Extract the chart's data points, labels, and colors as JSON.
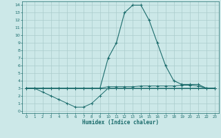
{
  "title": "",
  "xlabel": "Humidex (Indice chaleur)",
  "bg_color": "#cce8e8",
  "grid_color": "#aacccc",
  "line_color": "#1a6b6b",
  "xlim": [
    -0.5,
    23.5
  ],
  "ylim": [
    -0.3,
    14.5
  ],
  "xticks": [
    0,
    1,
    2,
    3,
    4,
    5,
    6,
    7,
    8,
    9,
    10,
    11,
    12,
    13,
    14,
    15,
    16,
    17,
    18,
    19,
    20,
    21,
    22,
    23
  ],
  "yticks": [
    0,
    1,
    2,
    3,
    4,
    5,
    6,
    7,
    8,
    9,
    10,
    11,
    12,
    13,
    14
  ],
  "curve1_x": [
    0,
    1,
    2,
    3,
    4,
    5,
    6,
    7,
    8,
    9,
    10,
    11,
    12,
    13,
    14,
    15,
    16,
    17,
    18,
    19,
    20,
    21,
    22,
    23
  ],
  "curve1_y": [
    3,
    3,
    3,
    3,
    3,
    3,
    3,
    3,
    3,
    3,
    3,
    3,
    3,
    3,
    3,
    3,
    3,
    3,
    3,
    3,
    3,
    3,
    3,
    3
  ],
  "curve2_x": [
    0,
    1,
    2,
    3,
    4,
    5,
    6,
    7,
    8,
    9,
    10,
    11,
    12,
    13,
    14,
    15,
    16,
    17,
    18,
    19,
    20,
    21,
    22,
    23
  ],
  "curve2_y": [
    3,
    3,
    2.5,
    2,
    1.5,
    1,
    0.5,
    0.5,
    1,
    2,
    3,
    3,
    3,
    3,
    3,
    3,
    3,
    3,
    3,
    3,
    3,
    3,
    3,
    3
  ],
  "curve3_x": [
    0,
    1,
    2,
    3,
    4,
    5,
    6,
    7,
    8,
    9,
    10,
    11,
    12,
    13,
    14,
    15,
    16,
    17,
    18,
    19,
    20,
    21,
    22,
    23
  ],
  "curve3_y": [
    3,
    3,
    3,
    3,
    3,
    3,
    3,
    3,
    3,
    3,
    3.2,
    3.2,
    3.2,
    3.2,
    3.3,
    3.3,
    3.3,
    3.3,
    3.3,
    3.4,
    3.4,
    3.3,
    3,
    3
  ],
  "curve4_x": [
    0,
    1,
    2,
    3,
    4,
    5,
    6,
    7,
    8,
    9,
    10,
    11,
    12,
    13,
    14,
    15,
    16,
    17,
    18,
    19,
    20,
    21,
    22,
    23
  ],
  "curve4_y": [
    3,
    3,
    3,
    3,
    3,
    3,
    3,
    3,
    3,
    3,
    7,
    9,
    13,
    14,
    14,
    12,
    9,
    6,
    4,
    3.5,
    3.5,
    3.5,
    3,
    3
  ]
}
